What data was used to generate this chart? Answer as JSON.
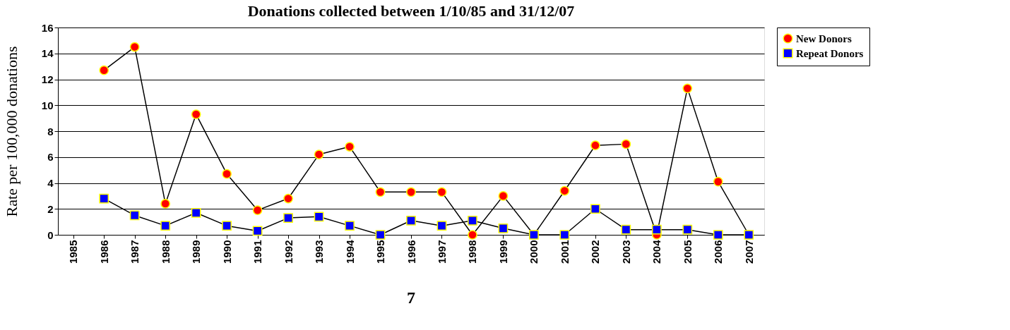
{
  "chart_data": {
    "type": "line",
    "title": "Donations collected between 1/10/85 and 31/12/07",
    "ylabel": "Rate per 100,000 donations",
    "categories": [
      "1985",
      "1986",
      "1987",
      "1988",
      "1989",
      "1990",
      "1991",
      "1992",
      "1993",
      "1994",
      "1995",
      "1996",
      "1997",
      "1998",
      "1999",
      "2000",
      "2001",
      "2002",
      "2003",
      "2004",
      "2005",
      "2006",
      "2007"
    ],
    "series": [
      {
        "name": "New Donors",
        "color": "#ff0000",
        "marker": "circle",
        "values": [
          null,
          12.7,
          14.5,
          2.4,
          9.3,
          4.7,
          1.9,
          2.8,
          6.2,
          6.8,
          3.3,
          3.3,
          3.3,
          0,
          3.0,
          0,
          3.4,
          6.9,
          7.0,
          0,
          11.3,
          4.1,
          0
        ]
      },
      {
        "name": "Repeat Donors",
        "color": "#0000ff",
        "marker": "square",
        "values": [
          null,
          2.8,
          1.5,
          0.7,
          1.7,
          0.7,
          0.3,
          1.3,
          1.4,
          0.7,
          0,
          1.1,
          0.7,
          1.1,
          0.5,
          0,
          0,
          2.0,
          0.4,
          0.4,
          0.4,
          0,
          0
        ]
      }
    ],
    "ylim": [
      0,
      16
    ],
    "yticks": [
      0,
      2,
      4,
      6,
      8,
      10,
      12,
      14,
      16
    ],
    "grid": "y",
    "legend": "right",
    "line_style": "solid",
    "annotations": [
      "7"
    ]
  }
}
